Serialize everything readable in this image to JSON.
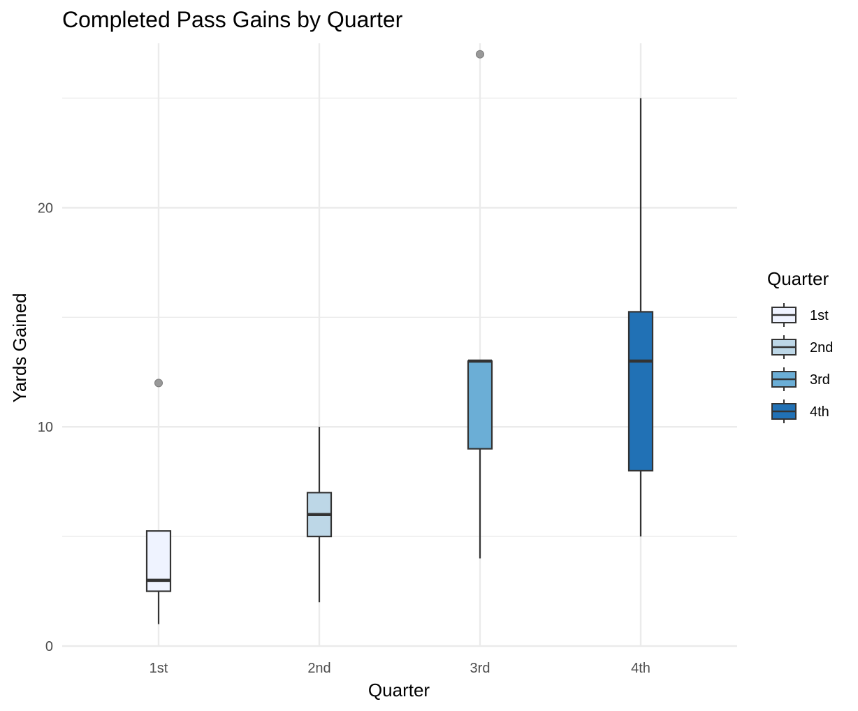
{
  "chart_data": {
    "type": "boxplot",
    "title": "Completed Pass Gains by Quarter",
    "xlabel": "Quarter",
    "ylabel": "Yards Gained",
    "categories": [
      "1st",
      "2nd",
      "3rd",
      "4th"
    ],
    "ylim": [
      0,
      27.5
    ],
    "yticks": [
      0,
      10,
      20
    ],
    "grid": true,
    "boxes": [
      {
        "category": "1st",
        "min": 1,
        "q1": 2.5,
        "median": 3,
        "q3": 5.25,
        "max": 5.25,
        "outliers": [
          12
        ],
        "color": "#eff3ff"
      },
      {
        "category": "2nd",
        "min": 2,
        "q1": 5,
        "median": 6,
        "q3": 7,
        "max": 10,
        "outliers": [],
        "color": "#bdd7e7"
      },
      {
        "category": "3rd",
        "min": 4,
        "q1": 9,
        "median": 13,
        "q3": 13,
        "max": 13,
        "outliers": [
          27
        ],
        "color": "#6baed6"
      },
      {
        "category": "4th",
        "min": 5,
        "q1": 8,
        "median": 13,
        "q3": 15.25,
        "max": 25,
        "outliers": [],
        "color": "#2171b5"
      }
    ],
    "legend": {
      "title": "Quarter",
      "placement": "right",
      "entries": [
        "1st",
        "2nd",
        "3rd",
        "4th"
      ]
    }
  }
}
